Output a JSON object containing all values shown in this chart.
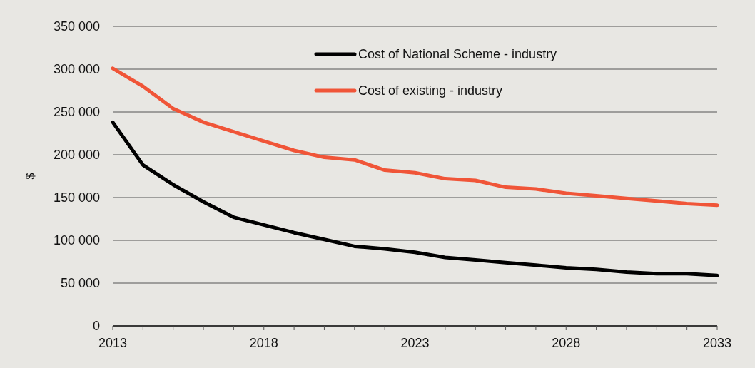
{
  "chart_data": {
    "type": "line",
    "ylabel": "$",
    "x": [
      2013,
      2014,
      2015,
      2016,
      2017,
      2018,
      2019,
      2020,
      2021,
      2022,
      2023,
      2024,
      2025,
      2026,
      2027,
      2028,
      2029,
      2030,
      2031,
      2032,
      2033
    ],
    "series": [
      {
        "name": "Cost of National Scheme - industry",
        "color": "#000000",
        "values": [
          238000,
          188000,
          165000,
          145000,
          127000,
          118000,
          109000,
          101000,
          93000,
          90000,
          86000,
          80000,
          77000,
          74000,
          71000,
          68000,
          66000,
          63000,
          61000,
          61000,
          59000
        ]
      },
      {
        "name": "Cost of existing - industry",
        "color": "#f05538",
        "values": [
          301000,
          280000,
          254000,
          238000,
          227000,
          216000,
          205000,
          197000,
          194000,
          182000,
          179000,
          172000,
          170000,
          162000,
          160000,
          155000,
          152000,
          149000,
          146000,
          143000,
          141000
        ]
      }
    ],
    "xlim": [
      2013,
      2033
    ],
    "xticks": [
      2013,
      {
        "value": 2014,
        "label": null
      },
      {
        "value": 2015,
        "label": null
      },
      {
        "value": 2016,
        "label": null
      },
      {
        "value": 2017,
        "label": null
      },
      2018,
      {
        "value": 2019,
        "label": null
      },
      {
        "value": 2020,
        "label": null
      },
      {
        "value": 2021,
        "label": null
      },
      {
        "value": 2022,
        "label": null
      },
      2023,
      {
        "value": 2024,
        "label": null
      },
      {
        "value": 2025,
        "label": null
      },
      {
        "value": 2026,
        "label": null
      },
      {
        "value": 2027,
        "label": null
      },
      2028,
      {
        "value": 2029,
        "label": null
      },
      {
        "value": 2030,
        "label": null
      },
      {
        "value": 2031,
        "label": null
      },
      {
        "value": 2032,
        "label": null
      },
      2033
    ],
    "ylim": [
      0,
      350000
    ],
    "yticks": [
      0,
      {
        "value": 50000,
        "label": "50 000"
      },
      {
        "value": 100000,
        "label": "100 000"
      },
      {
        "value": 150000,
        "label": "150 000"
      },
      {
        "value": 200000,
        "label": "200 000"
      },
      {
        "value": 250000,
        "label": "250 000"
      },
      {
        "value": 300000,
        "label": "300 000"
      },
      {
        "value": 350000,
        "label": "350 000"
      }
    ],
    "grid": "y",
    "legend": "top right",
    "marker": "none",
    "line_style": "solid"
  }
}
